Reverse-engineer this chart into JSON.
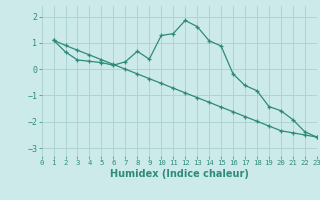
{
  "xlabel": "Humidex (Indice chaleur)",
  "line1_x": [
    1,
    2,
    3,
    4,
    5,
    6,
    7,
    8,
    9,
    10,
    11,
    12,
    13,
    14,
    15,
    16,
    17,
    18,
    19,
    20,
    21,
    22,
    23
  ],
  "line1_y": [
    1.1,
    0.65,
    0.35,
    0.3,
    0.25,
    0.15,
    0.28,
    0.68,
    0.38,
    1.28,
    1.35,
    1.85,
    1.62,
    1.08,
    0.88,
    -0.18,
    -0.62,
    -0.82,
    -1.42,
    -1.58,
    -1.92,
    -2.38,
    -2.58
  ],
  "line2_x": [
    1,
    2,
    3,
    4,
    5,
    6,
    7,
    8,
    9,
    10,
    11,
    12,
    13,
    14,
    15,
    16,
    17,
    18,
    19,
    20,
    21,
    22,
    23
  ],
  "line2_y": [
    1.1,
    0.9,
    0.72,
    0.54,
    0.36,
    0.18,
    0.0,
    -0.18,
    -0.36,
    -0.54,
    -0.72,
    -0.9,
    -1.08,
    -1.26,
    -1.44,
    -1.62,
    -1.8,
    -1.98,
    -2.16,
    -2.34,
    -2.42,
    -2.5,
    -2.58
  ],
  "line_color": "#2e8b7a",
  "bg_color": "#cceaea",
  "grid_color": "#aed4d4",
  "ylim": [
    -3.3,
    2.4
  ],
  "xlim": [
    0,
    23
  ],
  "yticks": [
    2,
    1,
    0,
    -1,
    -2,
    -3
  ],
  "xticks": [
    0,
    1,
    2,
    3,
    4,
    5,
    6,
    7,
    8,
    9,
    10,
    11,
    12,
    13,
    14,
    15,
    16,
    17,
    18,
    19,
    20,
    21,
    22,
    23
  ]
}
